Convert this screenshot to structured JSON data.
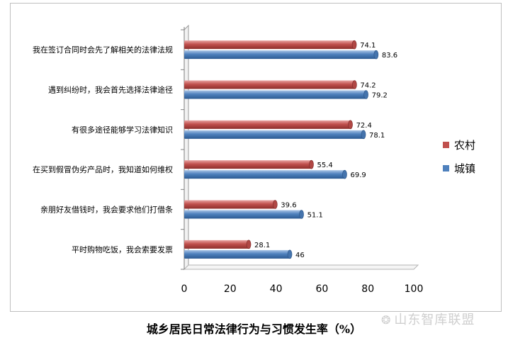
{
  "chart_data": {
    "type": "bar",
    "orientation": "horizontal",
    "title": "城乡居民日常法律行为与习惯发生率（%）",
    "categories": [
      "我在签订合同时会先了解相关的法律法规",
      "遇到纠纷时，我会首先选择法律途径",
      "有很多途径能够学习法律知识",
      "在买到假冒伪劣产品时，我知道如何维权",
      "亲朋好友借钱时，我会要求他们打借条",
      "平时购物吃饭，我会索要发票"
    ],
    "series": [
      {
        "name": "农村",
        "color": "#c0504d",
        "values": [
          74.1,
          74.2,
          72.4,
          55.4,
          39.6,
          28.1
        ]
      },
      {
        "name": "城镇",
        "color": "#4f81bd",
        "values": [
          83.6,
          79.2,
          78.1,
          69.9,
          51.1,
          46
        ]
      }
    ],
    "xlim": [
      0,
      100
    ],
    "xticks": [
      0,
      20,
      40,
      60,
      80,
      100
    ],
    "legend_position": "right",
    "grid": false
  },
  "watermark": {
    "icon": "wechat-icon",
    "text": "山东智库联盟"
  }
}
